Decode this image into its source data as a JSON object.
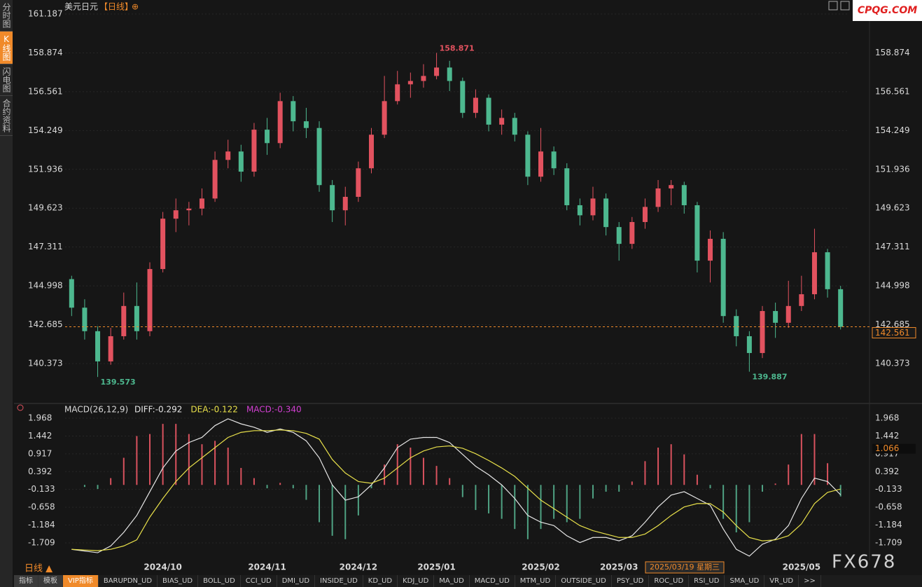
{
  "ui": {
    "sidebar_tabs": [
      "分时图",
      "K线图",
      "闪电图",
      "合约资料"
    ],
    "logo": "CPQG.COM",
    "watermark": "FX678",
    "period_label": "日线 ▲",
    "bottom_tabs": [
      "指标",
      "模板",
      "VIP指标",
      "BARUPDN_UD",
      "BIAS_UD",
      "BOLL_UD",
      "CCI_UD",
      "DMI_UD",
      "INSIDE_UD",
      "KD_UD",
      "KDJ_UD",
      "MA_UD",
      "MACD_UD",
      "MTM_UD",
      "OUTSIDE_UD",
      "PSY_UD",
      "ROC_UD",
      "RSI_UD",
      "SMA_UD",
      "VR_UD",
      ">>"
    ]
  },
  "chart_data": [
    {
      "type": "candlestick",
      "title": "美元日元",
      "subtitle": "【日线】",
      "up_color": "#e2525f",
      "down_color": "#4db88f",
      "price_line_color": "#f08a2a",
      "open": [
        145.4,
        143.7,
        142.3,
        140.5,
        142.0,
        143.8,
        142.3,
        146.0,
        149.0,
        149.5,
        149.6,
        150.2,
        152.5,
        153.0,
        151.8,
        154.3,
        153.5,
        156.0,
        154.8,
        154.4,
        151.0,
        149.5,
        150.3,
        152.0,
        154.0,
        156.0,
        157.0,
        157.2,
        157.5,
        158.0,
        157.2,
        155.3,
        156.2,
        154.6,
        155.0,
        154.0,
        151.5,
        153.0,
        152.0,
        149.8,
        149.2,
        150.2,
        148.5,
        147.5,
        148.8,
        149.7,
        150.8,
        151.0,
        149.8,
        146.5,
        147.8,
        143.2,
        142.0,
        141.0,
        143.5,
        142.8,
        143.8,
        144.5,
        147.0,
        144.8
      ],
      "high": [
        145.6,
        144.2,
        142.6,
        142.5,
        144.6,
        145.2,
        146.4,
        149.4,
        150.2,
        150.0,
        150.8,
        153.0,
        153.7,
        153.4,
        154.7,
        155.0,
        156.5,
        156.3,
        155.6,
        154.8,
        151.3,
        150.9,
        152.4,
        154.4,
        157.5,
        157.8,
        157.7,
        158.2,
        158.871,
        158.4,
        157.4,
        156.7,
        156.4,
        155.5,
        155.3,
        154.2,
        154.4,
        153.3,
        152.3,
        150.2,
        150.9,
        150.5,
        148.8,
        149.1,
        150.2,
        151.3,
        151.3,
        151.2,
        150.0,
        148.3,
        148.2,
        143.6,
        142.3,
        143.8,
        144.0,
        145.3,
        145.6,
        148.4,
        147.2,
        145.0
      ],
      "low": [
        143.2,
        141.8,
        139.573,
        140.3,
        141.8,
        141.8,
        142.0,
        145.8,
        148.2,
        148.6,
        149.2,
        150.0,
        152.0,
        151.2,
        151.5,
        152.8,
        153.2,
        154.2,
        153.8,
        150.6,
        148.8,
        148.6,
        150.0,
        151.7,
        153.8,
        155.8,
        156.2,
        156.8,
        157.3,
        156.6,
        155.0,
        155.0,
        154.2,
        154.0,
        153.6,
        151.0,
        151.2,
        151.6,
        149.5,
        148.6,
        148.9,
        148.0,
        146.5,
        147.2,
        148.4,
        149.4,
        149.8,
        149.3,
        145.8,
        145.2,
        142.8,
        141.4,
        139.887,
        140.7,
        141.9,
        142.5,
        143.5,
        144.2,
        144.3,
        142.4
      ],
      "close": [
        143.7,
        142.3,
        140.5,
        142.0,
        143.8,
        142.3,
        146.0,
        149.0,
        149.5,
        149.6,
        150.2,
        152.5,
        153.0,
        151.8,
        154.3,
        153.5,
        156.0,
        154.8,
        154.4,
        151.0,
        149.5,
        150.3,
        152.0,
        154.0,
        156.0,
        157.0,
        157.2,
        157.5,
        158.0,
        157.2,
        155.3,
        156.2,
        154.6,
        155.0,
        154.0,
        151.5,
        153.0,
        152.0,
        149.8,
        149.2,
        150.2,
        148.5,
        147.5,
        148.8,
        149.7,
        150.8,
        151.0,
        149.8,
        146.5,
        147.8,
        143.2,
        142.0,
        141.0,
        143.5,
        142.8,
        143.8,
        144.5,
        147.0,
        144.8,
        142.561
      ],
      "ylim": [
        138.245,
        161.813
      ],
      "yticks": [
        161.187,
        158.874,
        156.561,
        154.249,
        151.936,
        149.623,
        147.311,
        144.998,
        142.685,
        140.373
      ]
    },
    {
      "type": "macd",
      "legend_title": "MACD(26,12,9)",
      "legend": [
        "DIFF:-0.292",
        "DEA:-0.122",
        "MACD:-0.340"
      ],
      "legend_colors": [
        "#e6e6e6",
        "#e8e04a",
        "#d23fd2"
      ],
      "categories": [
        null,
        null,
        null,
        null,
        null,
        null,
        null,
        "2024/10",
        null,
        null,
        null,
        null,
        null,
        null,
        null,
        "2024/11",
        null,
        null,
        null,
        null,
        null,
        null,
        "2024/12",
        null,
        null,
        null,
        null,
        null,
        "2025/01",
        null,
        null,
        null,
        null,
        null,
        null,
        null,
        "2025/02",
        null,
        null,
        null,
        null,
        null,
        "2025/03",
        null,
        null,
        null,
        null,
        null,
        null,
        null,
        null,
        null,
        null,
        null,
        null,
        null,
        "2025/05",
        null,
        null,
        null
      ],
      "series": [
        {
          "name": "DIFF",
          "color": "#e6e6e6",
          "values": [
            -1.9,
            -1.95,
            -2.0,
            -1.8,
            -1.4,
            -0.9,
            -0.2,
            0.5,
            1.0,
            1.25,
            1.4,
            1.75,
            1.95,
            1.8,
            1.7,
            1.55,
            1.65,
            1.55,
            1.3,
            0.8,
            0.0,
            -0.45,
            -0.35,
            0.0,
            0.5,
            1.1,
            1.35,
            1.4,
            1.4,
            1.25,
            0.9,
            0.55,
            0.3,
            0.0,
            -0.4,
            -0.9,
            -1.1,
            -1.2,
            -1.5,
            -1.7,
            -1.55,
            -1.55,
            -1.65,
            -1.5,
            -1.1,
            -0.65,
            -0.3,
            -0.2,
            -0.4,
            -0.6,
            -1.3,
            -1.9,
            -2.1,
            -1.75,
            -1.6,
            -1.2,
            -0.4,
            0.2,
            0.1,
            -0.292
          ]
        },
        {
          "name": "DEA",
          "color": "#e8e04a",
          "values": [
            -1.9,
            -1.92,
            -1.94,
            -1.9,
            -1.8,
            -1.62,
            -0.95,
            -0.4,
            0.1,
            0.5,
            0.8,
            1.1,
            1.4,
            1.55,
            1.6,
            1.6,
            1.62,
            1.6,
            1.52,
            1.35,
            0.75,
            0.35,
            0.1,
            0.05,
            0.2,
            0.5,
            0.8,
            1.0,
            1.12,
            1.15,
            1.08,
            0.92,
            0.72,
            0.5,
            0.25,
            -0.1,
            -0.45,
            -0.7,
            -0.95,
            -1.2,
            -1.35,
            -1.45,
            -1.55,
            -1.55,
            -1.45,
            -1.2,
            -0.9,
            -0.65,
            -0.55,
            -0.55,
            -0.8,
            -1.2,
            -1.55,
            -1.65,
            -1.62,
            -1.5,
            -1.15,
            -0.55,
            -0.22,
            -0.122
          ]
        }
      ],
      "values": [
        0.0,
        -0.06,
        -0.12,
        0.2,
        0.8,
        1.44,
        1.5,
        1.8,
        1.8,
        1.5,
        1.2,
        1.3,
        1.1,
        0.5,
        0.2,
        -0.1,
        0.06,
        -0.1,
        -0.44,
        -1.1,
        -1.5,
        -1.6,
        -0.9,
        -0.1,
        0.6,
        1.2,
        1.1,
        0.8,
        0.56,
        0.2,
        -0.36,
        -0.74,
        -0.84,
        -1.0,
        -1.3,
        -1.6,
        -1.3,
        -1.0,
        -1.1,
        -1.0,
        -0.4,
        -0.2,
        -0.2,
        0.1,
        0.7,
        1.1,
        1.2,
        0.9,
        0.3,
        -0.1,
        -1.0,
        -1.4,
        -1.1,
        -0.2,
        0.04,
        0.6,
        1.5,
        1.5,
        0.64,
        -0.34
      ],
      "pos_color": "#d9525e",
      "neg_color": "#4fa283",
      "cursor_value": 1.066,
      "cursor_label": "2025/03/19 星期三",
      "ylim": [
        -2.226,
        2.071
      ],
      "yticks": [
        1.968,
        1.442,
        0.917,
        0.392,
        -0.133,
        -0.658,
        -1.184,
        -1.709
      ]
    }
  ]
}
